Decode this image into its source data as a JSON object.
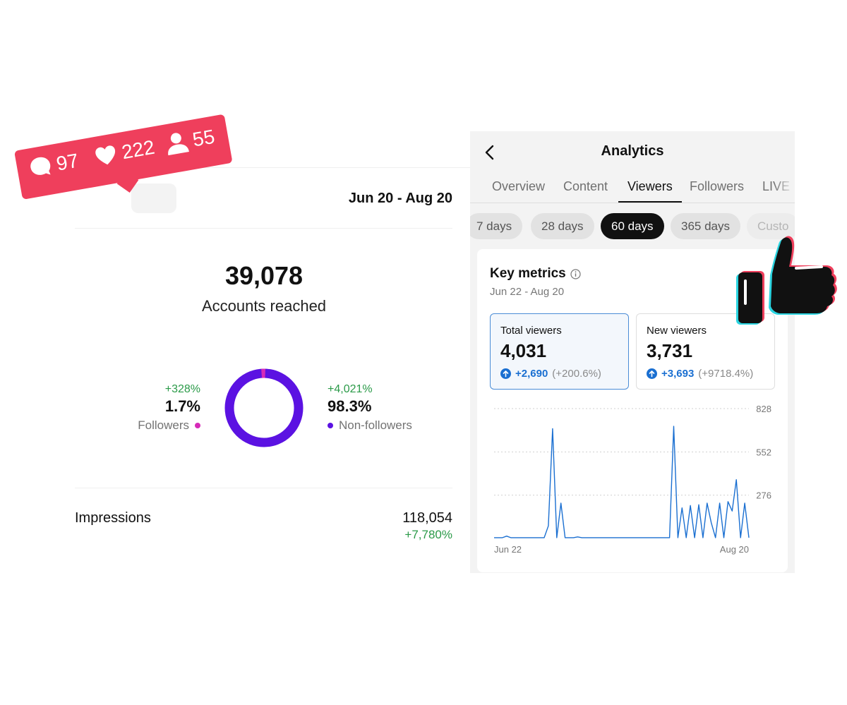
{
  "instagram": {
    "date_range": "Jun 20 - Aug 20",
    "accounts_reached": {
      "value": "39,078",
      "label": "Accounts reached"
    },
    "followers": {
      "change": "+328%",
      "percent": "1.7%",
      "label": "Followers",
      "color": "#d62bb8",
      "share": 1.7
    },
    "non_followers": {
      "change": "+4,021%",
      "percent": "98.3%",
      "label": "Non-followers",
      "color": "#5b12e2",
      "share": 98.3
    },
    "impressions": {
      "label": "Impressions",
      "value": "118,054",
      "change": "+7,780%"
    }
  },
  "notification_badge": {
    "color": "#ef3f5c",
    "comments": {
      "icon": "comment-icon",
      "count": "97"
    },
    "likes": {
      "icon": "heart-icon",
      "count": "222"
    },
    "followers": {
      "icon": "person-icon",
      "count": "55"
    }
  },
  "tiktok": {
    "title": "Analytics",
    "back_icon": "chevron-left-icon",
    "tabs": [
      {
        "label": "Overview",
        "active": false
      },
      {
        "label": "Content",
        "active": false
      },
      {
        "label": "Viewers",
        "active": true
      },
      {
        "label": "Followers",
        "active": false
      },
      {
        "label": "LIVE",
        "active": false
      }
    ],
    "ranges": [
      {
        "label": "7 days",
        "active": false
      },
      {
        "label": "28 days",
        "active": false
      },
      {
        "label": "60 days",
        "active": true
      },
      {
        "label": "365 days",
        "active": false
      },
      {
        "label": "Custo",
        "active": false
      }
    ],
    "key_metrics": {
      "title": "Key metrics",
      "date_range": "Jun 22 - Aug 20",
      "total_viewers": {
        "label": "Total viewers",
        "value": "4,031",
        "change": "+2,690",
        "change_pct": "(+200.6%)"
      },
      "new_viewers": {
        "label": "New viewers",
        "value": "3,731",
        "change": "+3,693",
        "change_pct": "(+9718.4%)"
      }
    }
  },
  "chart_data": {
    "type": "line",
    "x_labels": [
      "Jun 22",
      "Aug 20"
    ],
    "y_ticks": [
      276,
      552,
      828
    ],
    "ylim": [
      0,
      828
    ],
    "grid": true,
    "series_color": "#1a6fd1",
    "series": [
      {
        "values": [
          5,
          5,
          5,
          15,
          5,
          5,
          5,
          5,
          5,
          5,
          5,
          5,
          5,
          80,
          700,
          5,
          225,
          5,
          5,
          5,
          10,
          5,
          5,
          5,
          5,
          5,
          5,
          5,
          5,
          5,
          5,
          5,
          5,
          5,
          5,
          5,
          5,
          5,
          5,
          5,
          5,
          5,
          5,
          715,
          5,
          195,
          5,
          210,
          5,
          215,
          5,
          225,
          100,
          5,
          225,
          5,
          235,
          175,
          375,
          5,
          225,
          5
        ]
      }
    ]
  }
}
